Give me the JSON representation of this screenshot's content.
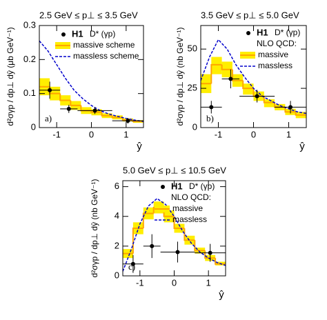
{
  "chart_data": [
    {
      "type": "histogram",
      "title": "2.5 GeV ≤ p⊥ ≤ 3.5 GeV",
      "xlabel": "ŷ",
      "ylabel": "d²σγp / dp⊥ dŷ (μb GeV⁻¹)",
      "panel_label": "a)",
      "legend_header": "D* (γp)",
      "xlim": [
        -1.5,
        1.5
      ],
      "xticks": [
        -1,
        0,
        1
      ],
      "ylim": [
        0,
        0.3
      ],
      "yticks": [
        0,
        0.1,
        0.2,
        0.3
      ],
      "bins": [
        -1.5,
        -1.2,
        -0.9,
        -0.6,
        -0.3,
        0,
        0.3,
        0.6,
        0.9,
        1.2,
        1.5
      ],
      "series": [
        {
          "name": "massive scheme",
          "color": "#ffa500",
          "band_color": "#ffee00",
          "values": [
            0.12,
            0.1,
            0.08,
            0.065,
            0.05,
            0.045,
            0.035,
            0.03,
            0.022,
            0.018
          ],
          "band_low": [
            0.095,
            0.08,
            0.065,
            0.052,
            0.04,
            0.036,
            0.028,
            0.024,
            0.018,
            0.014
          ],
          "band_high": [
            0.145,
            0.12,
            0.095,
            0.078,
            0.06,
            0.054,
            0.042,
            0.036,
            0.027,
            0.022
          ]
        },
        {
          "name": "massless scheme",
          "color": "#0000cc",
          "dashed": true,
          "x": [
            -1.5,
            -1.25,
            -1,
            -0.75,
            -0.5,
            -0.25,
            0,
            0.25,
            0.5,
            0.75,
            1,
            1.25,
            1.5
          ],
          "values": [
            0.255,
            0.225,
            0.185,
            0.145,
            0.11,
            0.085,
            0.065,
            0.05,
            0.04,
            0.033,
            0.027,
            0.022,
            0.018
          ]
        },
        {
          "name": "H1",
          "color": "#000000",
          "x": [
            -1.2,
            -0.65,
            0.1,
            1.05
          ],
          "x_bins": [
            -1.5,
            -0.9,
            -0.4,
            0.6,
            1.5
          ],
          "values": [
            0.11,
            0.055,
            0.05,
            0.02
          ],
          "errors": [
            0.025,
            0.012,
            0.01,
            0.008
          ]
        }
      ]
    },
    {
      "type": "histogram",
      "title": "3.5 GeV ≤ p⊥ ≤ 5.0 GeV",
      "xlabel": "ŷ",
      "ylabel": "d²σγp / dp⊥ dŷ (nb GeV⁻¹)",
      "panel_label": "b)",
      "legend_header": "D* (γp)",
      "legend_note": "NLO QCD:",
      "xlim": [
        -1.5,
        1.5
      ],
      "xticks": [
        -1,
        0,
        1
      ],
      "ylim": [
        0,
        65
      ],
      "yticks": [
        0,
        25,
        50
      ],
      "bins": [
        -1.5,
        -1.2,
        -0.9,
        -0.6,
        -0.3,
        0,
        0.3,
        0.6,
        0.9,
        1.2,
        1.5
      ],
      "series": [
        {
          "name": "massive",
          "color": "#ffa500",
          "band_color": "#ffee00",
          "values": [
            28,
            40,
            37,
            30,
            25,
            20,
            16,
            13,
            10,
            8
          ],
          "band_low": [
            22,
            34,
            32,
            26,
            21,
            17,
            13,
            11,
            8,
            6
          ],
          "band_high": [
            34,
            45,
            42,
            34,
            28,
            23,
            18,
            15,
            12,
            10
          ]
        },
        {
          "name": "massless",
          "color": "#0000cc",
          "dashed": true,
          "x": [
            -1.5,
            -1.25,
            -1,
            -0.75,
            -0.5,
            -0.25,
            0,
            0.25,
            0.5,
            0.75,
            1,
            1.25,
            1.5
          ],
          "values": [
            30,
            45,
            56,
            50,
            40,
            32,
            25,
            20,
            17,
            14,
            12,
            10,
            9
          ]
        },
        {
          "name": "H1",
          "color": "#000000",
          "x": [
            -1.2,
            -0.65,
            0.1,
            1.05
          ],
          "x_bins": [
            -1.5,
            -0.9,
            -0.4,
            0.6,
            1.5
          ],
          "values": [
            13,
            31,
            20,
            13
          ],
          "errors": [
            4,
            6,
            4,
            4
          ]
        }
      ]
    },
    {
      "type": "histogram",
      "title": "5.0 GeV ≤ p⊥ ≤ 10.5 GeV",
      "xlabel": "ŷ",
      "ylabel": "d²σγp / dp⊥ dŷ (nb GeV⁻¹)",
      "panel_label": "c)",
      "legend_header": "D* (γp)",
      "legend_note": "NLO QCD:",
      "xlim": [
        -1.5,
        1.5
      ],
      "xticks": [
        -1,
        0,
        1
      ],
      "ylim": [
        0,
        6.4
      ],
      "yticks": [
        0,
        2,
        4,
        6
      ],
      "bins": [
        -1.5,
        -1.2,
        -0.9,
        -0.6,
        -0.3,
        0,
        0.3,
        0.6,
        0.9,
        1.2,
        1.5
      ],
      "series": [
        {
          "name": "massive",
          "color": "#ffa500",
          "band_color": "#ffee00",
          "values": [
            1.5,
            3.2,
            4.2,
            4.6,
            4.0,
            3.2,
            2.4,
            1.7,
            1.2,
            0.8
          ],
          "band_low": [
            1.2,
            2.8,
            3.8,
            4.2,
            3.6,
            2.9,
            2.1,
            1.5,
            1.0,
            0.7
          ],
          "band_high": [
            1.8,
            3.6,
            4.6,
            5.0,
            4.4,
            3.5,
            2.7,
            1.9,
            1.4,
            0.95
          ]
        },
        {
          "name": "massless",
          "color": "#0000cc",
          "dashed": true,
          "x": [
            -1.5,
            -1.25,
            -1,
            -0.75,
            -0.5,
            -0.25,
            0,
            0.25,
            0.5,
            0.75,
            1,
            1.25,
            1.5
          ],
          "values": [
            0.3,
            1.8,
            3.5,
            4.7,
            5.2,
            4.8,
            4.0,
            3.0,
            2.2,
            1.6,
            1.2,
            0.9,
            0.7
          ]
        },
        {
          "name": "H1",
          "color": "#000000",
          "x": [
            -1.2,
            -0.65,
            0.1,
            1.05
          ],
          "x_bins": [
            -1.5,
            -0.9,
            -0.4,
            0.6,
            1.5
          ],
          "values": [
            0.8,
            2.0,
            1.6,
            1.55
          ],
          "errors": [
            0.6,
            0.8,
            0.7,
            0.6
          ]
        }
      ]
    }
  ]
}
